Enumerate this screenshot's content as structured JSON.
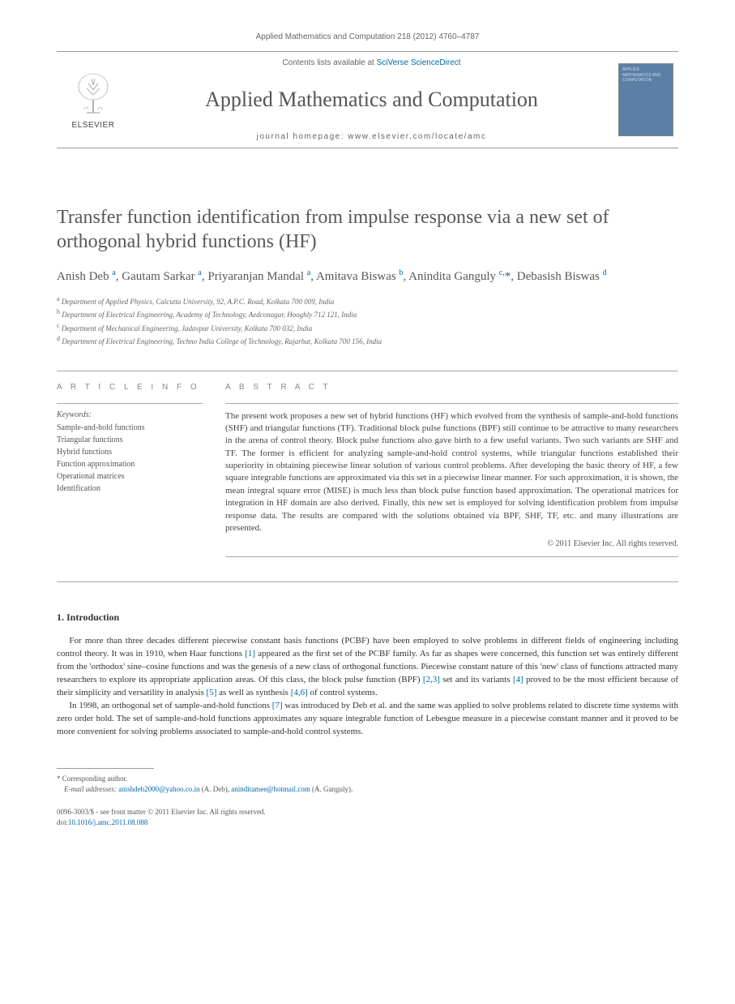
{
  "journal_ref": "Applied Mathematics and Computation 218 (2012) 4760–4787",
  "masthead": {
    "contents_prefix": "Contents lists available at ",
    "contents_link": "SciVerse ScienceDirect",
    "journal_title": "Applied Mathematics and Computation",
    "homepage_label": "journal homepage: www.elsevier.com/locate/amc",
    "publisher": "ELSEVIER",
    "cover_text": "APPLIED MATHEMATICS AND COMPUTATION"
  },
  "article": {
    "title": "Transfer function identification from impulse response via a new set of orthogonal hybrid functions (HF)",
    "authors_html": "Anish Deb <sup>a</sup>, Gautam Sarkar <sup>a</sup>, Priyaranjan Mandal <sup>a</sup>, Amitava Biswas <sup>b</sup>, Anindita Ganguly <sup>c,</sup><span class='ast'>*</span>, Debasish Biswas <sup>d</sup>",
    "affiliations": [
      {
        "sup": "a",
        "text": "Department of Applied Physics, Calcutta University, 92, A.P.C. Road, Kolkata 700 009, India"
      },
      {
        "sup": "b",
        "text": "Department of Electrical Engineering, Academy of Technology, Aedconagar, Hooghly 712 121, India"
      },
      {
        "sup": "c",
        "text": "Department of Mechanical Engineering, Jadavpur University, Kolkata 700 032, India"
      },
      {
        "sup": "d",
        "text": "Department of Electrical Engineering, Techno India College of Technology, Rajarhat, Kolkata 700 156, India"
      }
    ]
  },
  "info": {
    "heading": "A R T I C L E   I N F O",
    "keywords_label": "Keywords:",
    "keywords": [
      "Sample-and-hold functions",
      "Triangular functions",
      "Hybrid functions",
      "Function approximation",
      "Operational matrices",
      "Identification"
    ]
  },
  "abstract": {
    "heading": "A B S T R A C T",
    "text": "The present work proposes a new set of hybrid functions (HF) which evolved from the synthesis of sample-and-hold functions (SHF) and triangular functions (TF). Traditional block pulse functions (BPF) still continue to be attractive to many researchers in the arena of control theory. Block pulse functions also gave birth to a few useful variants. Two such variants are SHF and TF. The former is efficient for analyzing sample-and-hold control systems, while triangular functions established their superiority in obtaining piecewise linear solution of various control problems. After developing the basic theory of HF, a few square integrable functions are approximated via this set in a piecewise linear manner. For such approximation, it is shown, the mean integral square error (MISE) is much less than block pulse function based approximation. The operational matrices for integration in HF domain are also derived. Finally, this new set is employed for solving identification problem from impulse response data. The results are compared with the solutions obtained via BPF, SHF, TF, etc. and many illustrations are presented.",
    "copyright": "© 2011 Elsevier Inc. All rights reserved."
  },
  "section1": {
    "heading": "1. Introduction",
    "para1_parts": {
      "p1": "For more than three decades different piecewise constant basis functions (PCBF) have been employed to solve problems in different fields of engineering including control theory. It was in 1910, when Haar functions ",
      "r1": "[1]",
      "p2": " appeared as the first set of the PCBF family. As far as shapes were concerned, this function set was entirely different from the 'orthodox' sine–cosine functions and was the genesis of a new class of orthogonal functions. Piecewise constant nature of this 'new' class of functions attracted many researchers to explore its appropriate application areas. Of this class, the block pulse function (BPF) ",
      "r2": "[2,3]",
      "p3": " set and its variants ",
      "r3": "[4]",
      "p4": " proved to be the most efficient because of their simplicity and versatility in analysis ",
      "r4": "[5]",
      "p5": " as well as synthesis ",
      "r5": "[4,6]",
      "p6": " of control systems."
    },
    "para2_parts": {
      "p1": "In 1998, an orthogonal set of sample-and-hold functions ",
      "r1": "[7]",
      "p2": " was introduced by Deb et al. and the same was applied to solve problems related to discrete time systems with zero order hold. The set of sample-and-hold functions approximates any square integrable function of Lebesgue measure in a piecewise constant manner and it proved to be more convenient for solving problems associated to sample-and-hold control systems."
    }
  },
  "footnotes": {
    "corr_label": "* Corresponding author.",
    "email_label": "E-mail addresses:",
    "email1": "anishdeb2000@yahoo.co.in",
    "email1_who": " (A. Deb), ",
    "email2": "aninditamee@hotmail.com",
    "email2_who": " (A. Ganguly)."
  },
  "footer": {
    "issn_line": "0096-3003/$ - see front matter © 2011 Elsevier Inc. All rights reserved.",
    "doi_label": "doi:",
    "doi": "10.1016/j.amc.2011.08.088"
  },
  "colors": {
    "link": "#0066aa",
    "text": "#333333",
    "muted": "#666666",
    "cover_bg": "#5b7fa6"
  }
}
